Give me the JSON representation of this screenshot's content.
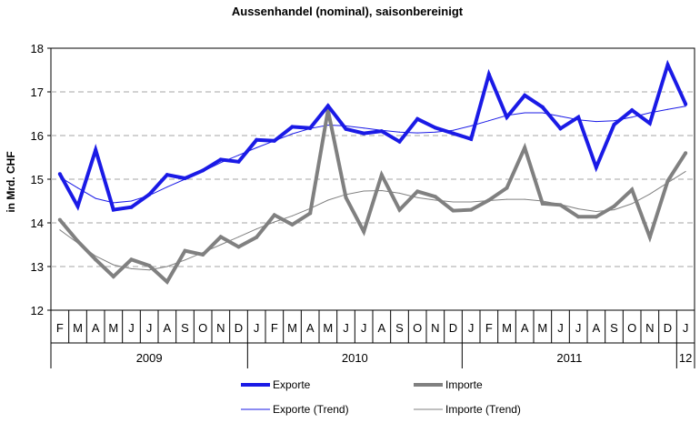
{
  "chart_data": {
    "type": "line",
    "title": "Aussenhandel (nominal), saisonbereinigt",
    "ylabel": "in Mrd. CHF",
    "xlabel": "",
    "ylim": [
      12,
      18
    ],
    "yticks": [
      12,
      13,
      14,
      15,
      16,
      17,
      18
    ],
    "grid": "horizontal dashed",
    "months": [
      "F",
      "M",
      "A",
      "M",
      "J",
      "J",
      "A",
      "S",
      "O",
      "N",
      "D",
      "J",
      "F",
      "M",
      "A",
      "M",
      "J",
      "J",
      "A",
      "S",
      "O",
      "N",
      "D",
      "J",
      "F",
      "M",
      "A",
      "M",
      "J",
      "J",
      "A",
      "S",
      "O",
      "N",
      "D",
      "J"
    ],
    "years": [
      {
        "label": "2009"
      },
      {
        "label": "2010"
      },
      {
        "label": "2011"
      },
      {
        "label": "12"
      }
    ],
    "series": [
      {
        "name": "Exporte",
        "color": "#1a1ae6",
        "style": "thick",
        "values": [
          15.12,
          14.38,
          15.67,
          14.3,
          14.36,
          14.65,
          15.1,
          15.02,
          15.2,
          15.45,
          15.4,
          15.9,
          15.88,
          16.2,
          16.17,
          16.68,
          16.15,
          16.05,
          16.1,
          15.86,
          16.38,
          16.18,
          16.05,
          15.92,
          17.4,
          16.42,
          16.92,
          16.65,
          16.16,
          16.42,
          15.27,
          16.25,
          16.58,
          16.28,
          17.62,
          16.72
        ]
      },
      {
        "name": "Importe",
        "color": "#808080",
        "style": "thick",
        "values": [
          14.07,
          13.58,
          13.16,
          12.77,
          13.16,
          13.02,
          12.65,
          13.36,
          13.27,
          13.68,
          13.45,
          13.67,
          14.18,
          13.96,
          14.22,
          16.58,
          14.58,
          13.8,
          15.1,
          14.3,
          14.72,
          14.6,
          14.28,
          14.3,
          14.52,
          14.8,
          15.72,
          14.44,
          14.41,
          14.14,
          14.14,
          14.38,
          14.76,
          13.67,
          14.96,
          15.6
        ]
      },
      {
        "name": "Exporte (Trend)",
        "color": "#1a1ae6",
        "style": "thin",
        "values": [
          15.05,
          14.8,
          14.56,
          14.46,
          14.5,
          14.63,
          14.82,
          15.0,
          15.18,
          15.38,
          15.55,
          15.72,
          15.88,
          16.04,
          16.16,
          16.24,
          16.22,
          16.17,
          16.12,
          16.08,
          16.06,
          16.08,
          16.12,
          16.22,
          16.34,
          16.46,
          16.52,
          16.52,
          16.44,
          16.36,
          16.32,
          16.34,
          16.42,
          16.52,
          16.6,
          16.67
        ]
      },
      {
        "name": "Importe (Trend)",
        "color": "#808080",
        "style": "thin",
        "values": [
          13.84,
          13.54,
          13.24,
          13.04,
          12.95,
          12.92,
          13.0,
          13.15,
          13.32,
          13.5,
          13.68,
          13.86,
          14.02,
          14.16,
          14.33,
          14.52,
          14.65,
          14.73,
          14.74,
          14.68,
          14.58,
          14.52,
          14.48,
          14.48,
          14.51,
          14.54,
          14.54,
          14.5,
          14.42,
          14.32,
          14.26,
          14.3,
          14.44,
          14.66,
          14.92,
          15.18
        ]
      }
    ]
  }
}
